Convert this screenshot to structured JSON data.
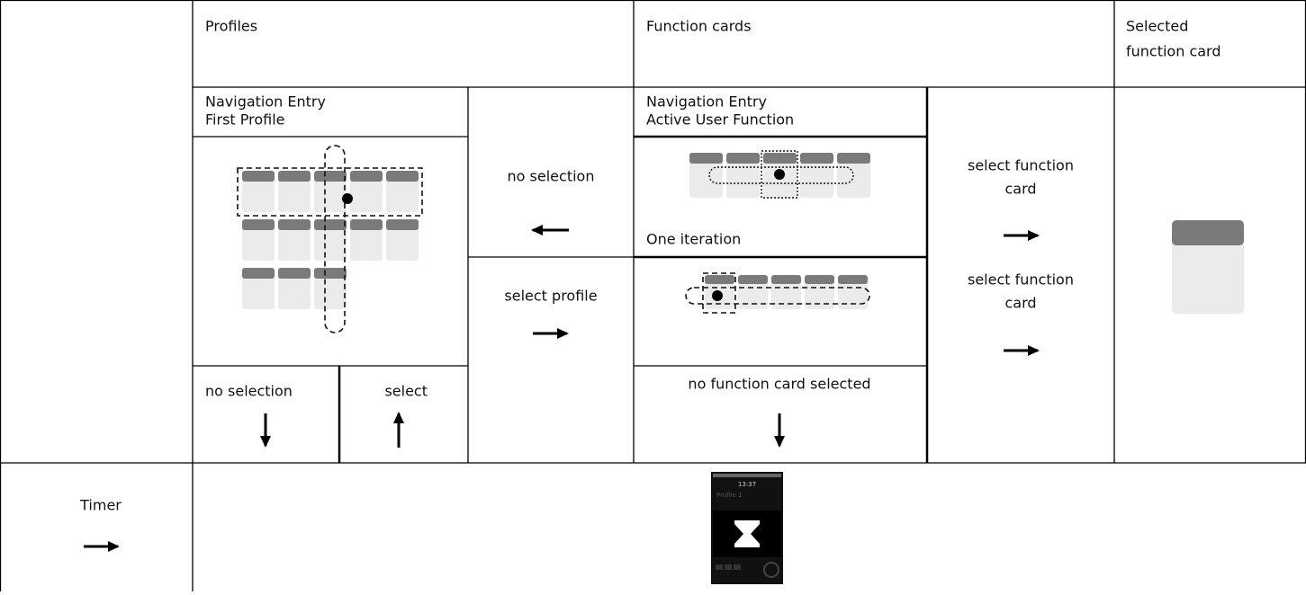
{
  "header": {
    "profiles": "Profiles",
    "function_cards": "Function cards",
    "selected_function_card": [
      "Selected",
      "function card"
    ]
  },
  "profiles": {
    "entry": [
      "Navigation Entry",
      "First Profile"
    ],
    "no_selection": "no selection",
    "select": "select"
  },
  "middle": {
    "no_selection": "no selection",
    "select_profile": "select profile"
  },
  "function_cards": {
    "entry": [
      "Navigation Entry",
      "Active User Function"
    ],
    "one_iteration": "One iteration",
    "no_card_selected": "no function card selected"
  },
  "transitions": {
    "select_function_card_1": [
      "select function",
      "card"
    ],
    "select_function_card_2": [
      "select function",
      "card"
    ]
  },
  "timer": {
    "label": "Timer",
    "screen_time": "13:37",
    "screen_profile": "Profile 1"
  }
}
